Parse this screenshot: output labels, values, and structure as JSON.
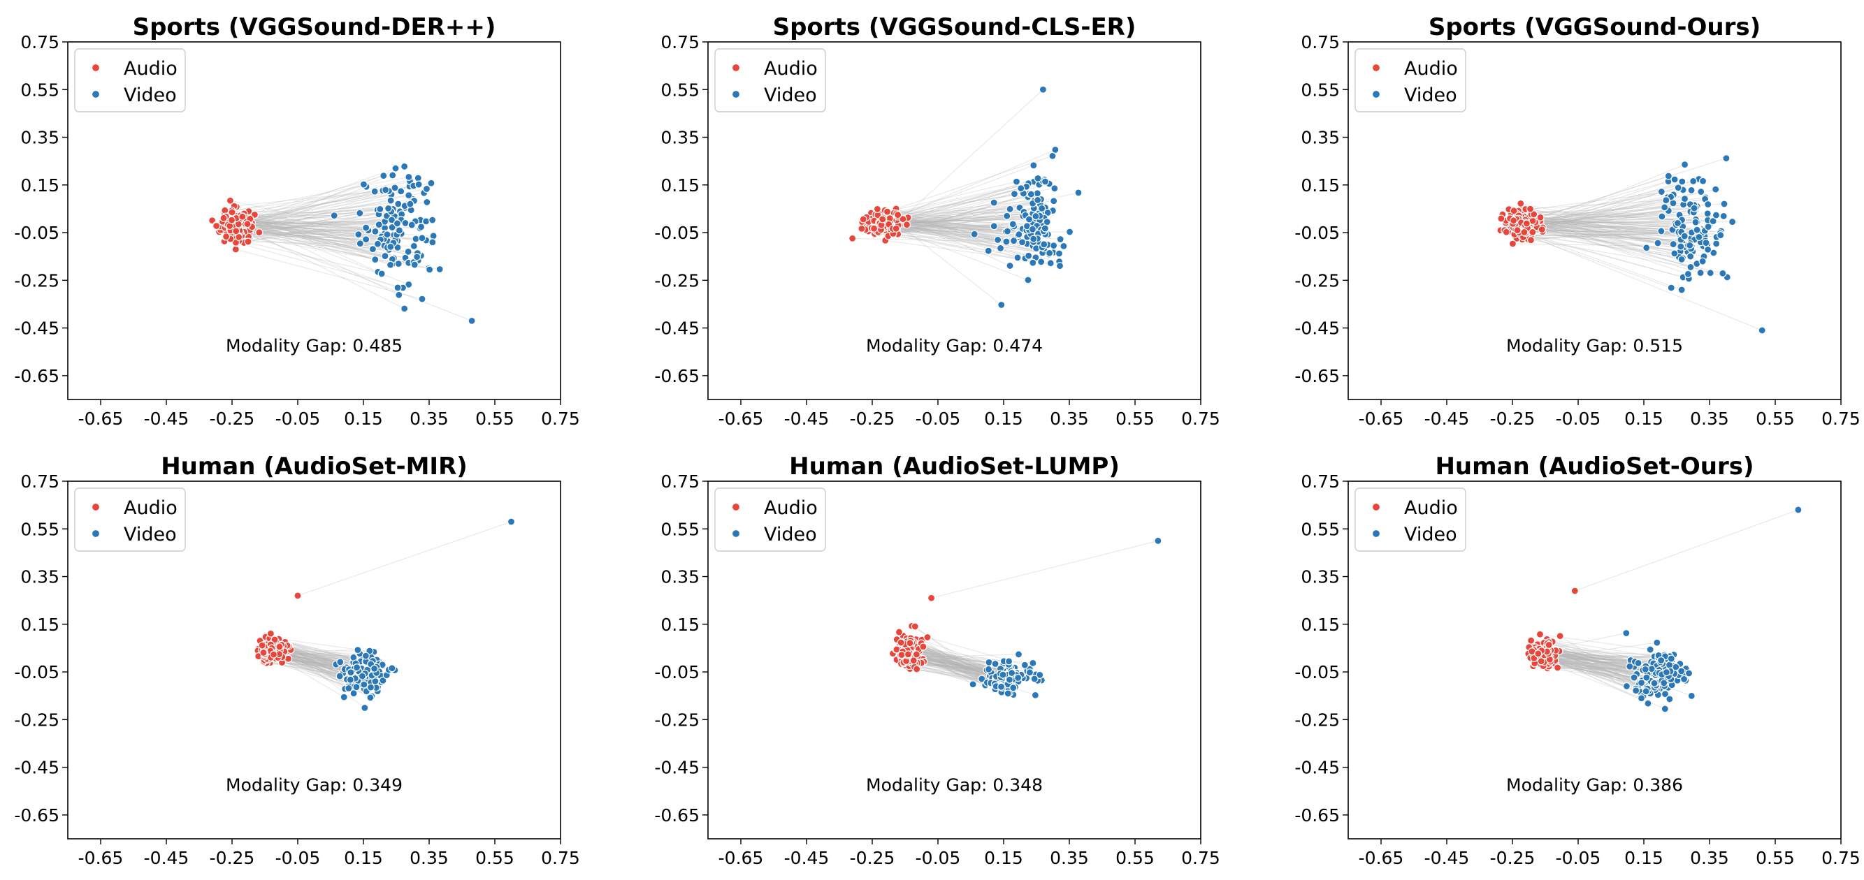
{
  "colors": {
    "audio": "#e8463a",
    "video": "#2b78b8",
    "pair_line": "#b4b4b4"
  },
  "chart_data": [
    {
      "type": "scatter",
      "title": "Sports (VGGSound-DER++)",
      "xlim": [
        -0.75,
        0.75
      ],
      "ylim": [
        -0.75,
        0.75
      ],
      "xticks": [
        "-0.65",
        "-0.45",
        "-0.25",
        "-0.05",
        "0.15",
        "0.35",
        "0.55",
        "0.75"
      ],
      "yticks": [
        "0.75",
        "0.55",
        "0.35",
        "0.15",
        "-0.05",
        "-0.25",
        "-0.45",
        "-0.65"
      ],
      "legend": {
        "position": "top-left",
        "entries": [
          "Audio",
          "Video"
        ]
      },
      "annotation": "Modality Gap: 0.485",
      "series": [
        {
          "name": "Audio",
          "center": [
            -0.24,
            -0.02
          ],
          "spread": [
            0.04,
            0.05
          ]
        },
        {
          "name": "Video",
          "center": [
            0.25,
            -0.02
          ],
          "spread": [
            0.09,
            0.19
          ],
          "extreme": [
            0.48,
            -0.42
          ]
        }
      ]
    },
    {
      "type": "scatter",
      "title": "Sports (VGGSound-CLS-ER)",
      "xlim": [
        -0.75,
        0.75
      ],
      "ylim": [
        -0.75,
        0.75
      ],
      "xticks": [
        "-0.65",
        "-0.45",
        "-0.25",
        "-0.05",
        "0.15",
        "0.35",
        "0.55",
        "0.75"
      ],
      "yticks": [
        "0.75",
        "0.55",
        "0.35",
        "0.15",
        "-0.05",
        "-0.25",
        "-0.45",
        "-0.65"
      ],
      "legend": {
        "position": "top-left",
        "entries": [
          "Audio",
          "Video"
        ]
      },
      "annotation": "Modality Gap: 0.474",
      "series": [
        {
          "name": "Audio",
          "center": [
            -0.22,
            -0.01
          ],
          "spread": [
            0.04,
            0.04
          ]
        },
        {
          "name": "Video",
          "center": [
            0.24,
            -0.01
          ],
          "spread": [
            0.09,
            0.19
          ],
          "extreme": [
            0.27,
            0.55
          ]
        }
      ]
    },
    {
      "type": "scatter",
      "title": "Sports (VGGSound-Ours)",
      "xlim": [
        -0.75,
        0.75
      ],
      "ylim": [
        -0.75,
        0.75
      ],
      "xticks": [
        "-0.65",
        "-0.45",
        "-0.25",
        "-0.05",
        "0.15",
        "0.35",
        "0.55",
        "0.75"
      ],
      "yticks": [
        "0.75",
        "0.55",
        "0.35",
        "0.15",
        "-0.05",
        "-0.25",
        "-0.45",
        "-0.65"
      ],
      "legend": {
        "position": "top-left",
        "entries": [
          "Audio",
          "Video"
        ]
      },
      "annotation": "Modality Gap: 0.515",
      "series": [
        {
          "name": "Audio",
          "center": [
            -0.22,
            -0.02
          ],
          "spread": [
            0.04,
            0.05
          ]
        },
        {
          "name": "Video",
          "center": [
            0.3,
            -0.03
          ],
          "spread": [
            0.09,
            0.19
          ],
          "extreme": [
            0.51,
            -0.46
          ]
        }
      ]
    },
    {
      "type": "scatter",
      "title": "Human (AudioSet-MIR)",
      "xlim": [
        -0.75,
        0.75
      ],
      "ylim": [
        -0.75,
        0.75
      ],
      "xticks": [
        "-0.65",
        "-0.45",
        "-0.25",
        "-0.05",
        "0.15",
        "0.35",
        "0.55",
        "0.75"
      ],
      "yticks": [
        "0.75",
        "0.55",
        "0.35",
        "0.15",
        "-0.05",
        "-0.25",
        "-0.45",
        "-0.65"
      ],
      "legend": {
        "position": "top-left",
        "entries": [
          "Audio",
          "Video"
        ]
      },
      "annotation": "Modality Gap: 0.349",
      "series": [
        {
          "name": "Audio",
          "center": [
            -0.13,
            0.04
          ],
          "spread": [
            0.03,
            0.04
          ],
          "extreme": [
            -0.05,
            0.27
          ]
        },
        {
          "name": "Video",
          "center": [
            0.15,
            -0.06
          ],
          "spread": [
            0.06,
            0.07
          ],
          "extreme": [
            0.6,
            0.58
          ]
        }
      ]
    },
    {
      "type": "scatter",
      "title": "Human (AudioSet-LUMP)",
      "xlim": [
        -0.75,
        0.75
      ],
      "ylim": [
        -0.75,
        0.75
      ],
      "xticks": [
        "-0.65",
        "-0.45",
        "-0.25",
        "-0.05",
        "0.15",
        "0.35",
        "0.55",
        "0.75"
      ],
      "yticks": [
        "0.75",
        "0.55",
        "0.35",
        "0.15",
        "-0.05",
        "-0.25",
        "-0.45",
        "-0.65"
      ],
      "legend": {
        "position": "top-left",
        "entries": [
          "Audio",
          "Video"
        ]
      },
      "annotation": "Modality Gap: 0.348",
      "series": [
        {
          "name": "Audio",
          "center": [
            -0.14,
            0.03
          ],
          "spread": [
            0.03,
            0.05
          ],
          "extreme": [
            -0.07,
            0.26
          ]
        },
        {
          "name": "Video",
          "center": [
            0.16,
            -0.07
          ],
          "spread": [
            0.06,
            0.06
          ],
          "extreme": [
            0.62,
            0.5
          ]
        }
      ]
    },
    {
      "type": "scatter",
      "title": "Human (AudioSet-Ours)",
      "xlim": [
        -0.75,
        0.75
      ],
      "ylim": [
        -0.75,
        0.75
      ],
      "xticks": [
        "-0.65",
        "-0.45",
        "-0.25",
        "-0.05",
        "0.15",
        "0.35",
        "0.55",
        "0.75"
      ],
      "yticks": [
        "0.75",
        "0.55",
        "0.35",
        "0.15",
        "-0.05",
        "-0.25",
        "-0.45",
        "-0.65"
      ],
      "legend": {
        "position": "top-left",
        "entries": [
          "Audio",
          "Video"
        ]
      },
      "annotation": "Modality Gap: 0.386",
      "series": [
        {
          "name": "Audio",
          "center": [
            -0.16,
            0.03
          ],
          "spread": [
            0.03,
            0.04
          ],
          "extreme": [
            -0.06,
            0.29
          ]
        },
        {
          "name": "Video",
          "center": [
            0.19,
            -0.06
          ],
          "spread": [
            0.07,
            0.08
          ],
          "extreme": [
            0.62,
            0.63
          ]
        }
      ]
    }
  ]
}
